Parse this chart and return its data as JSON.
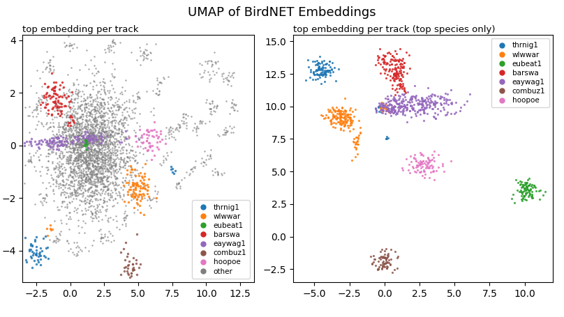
{
  "title": "UMAP of BirdNET Embeddings",
  "subtitle_left": "top embedding per track",
  "subtitle_right": "top embedding per track (top species only)",
  "species": [
    "thrnig1",
    "wlwwar",
    "eubeat1",
    "barswa",
    "eaywag1",
    "combuz1",
    "hoopoe"
  ],
  "colors": {
    "thrnig1": "#1f77b4",
    "wlwwar": "#ff7f0e",
    "eubeat1": "#2ca02c",
    "barswa": "#d62728",
    "eaywag1": "#9467bd",
    "combuz1": "#8c564b",
    "hoopoe": "#e377c2",
    "other": "#7f7f7f"
  },
  "left_xlim": [
    -3.5,
    13.5
  ],
  "left_ylim": [
    -5.2,
    4.2
  ],
  "right_xlim": [
    -6.5,
    12.0
  ],
  "right_ylim": [
    -3.5,
    15.5
  ],
  "seed": 42
}
